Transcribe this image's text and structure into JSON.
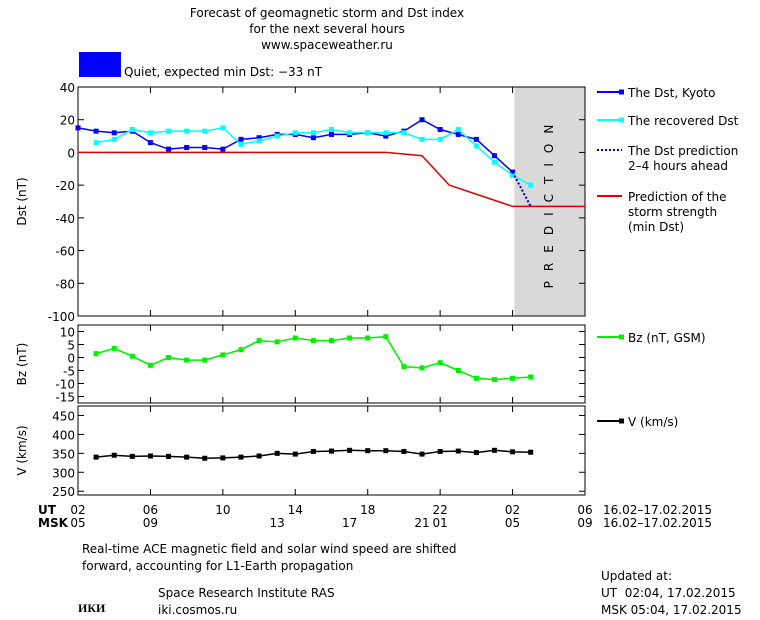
{
  "header": {
    "title_lines": [
      "Forecast of geomagnetic storm and Dst index",
      "for the next several hours",
      "www.spaceweather.ru"
    ],
    "status": "Quiet, expected min Dst: −33 nT",
    "status_color": "#0000ff"
  },
  "chart_data": [
    {
      "type": "line",
      "ylabel": "Dst (nT)",
      "xlim": [
        2,
        30
      ],
      "ylim": [
        -100,
        40
      ],
      "yticks": [
        40,
        20,
        0,
        -20,
        -40,
        -60,
        -80,
        -100
      ],
      "shaded_region": {
        "x": [
          26.1,
          30
        ],
        "label": "PREDICTION",
        "color": "#d9d9d9"
      },
      "series": [
        {
          "name": "The Dst, Kyoto",
          "color": "#0000ff",
          "style": "solid",
          "markers": true,
          "x": [
            2,
            3,
            4,
            5,
            6,
            7,
            8,
            9,
            10,
            11,
            12,
            13,
            14,
            15,
            16,
            17,
            18,
            19,
            20,
            21,
            22,
            23,
            24,
            25,
            26
          ],
          "values": [
            15,
            13,
            12,
            13,
            6,
            2,
            3,
            3,
            2,
            8,
            9,
            11,
            11,
            9,
            11,
            11,
            12,
            10,
            13,
            20,
            14,
            11,
            8,
            -2,
            -12
          ]
        },
        {
          "name": "The recovered Dst",
          "color": "#00ffff",
          "style": "solid",
          "markers": true,
          "x": [
            3,
            4,
            5,
            6,
            7,
            8,
            9,
            10,
            11,
            12,
            13,
            14,
            15,
            16,
            17,
            18,
            19,
            20,
            21,
            22,
            23,
            24,
            25,
            26,
            27
          ],
          "values": [
            6,
            8,
            14,
            12,
            13,
            13,
            13,
            15,
            5,
            7,
            10,
            12,
            12,
            14,
            12,
            12,
            12,
            12,
            8,
            8,
            14,
            4,
            -6,
            -14,
            -20
          ]
        },
        {
          "name": "The Dst prediction\n2–4 hours ahead",
          "color": "#0000aa",
          "style": "dotted",
          "markers": false,
          "x": [
            26,
            27
          ],
          "values": [
            -12,
            -33
          ]
        },
        {
          "name": "Prediction of the\nstorm strength\n(min Dst)",
          "color": "#dd0000",
          "style": "solid",
          "markers": false,
          "x": [
            2,
            19,
            21,
            22.5,
            26,
            30
          ],
          "values": [
            0,
            0,
            -2,
            -20,
            -33,
            -33
          ]
        }
      ]
    },
    {
      "type": "line",
      "ylabel": "Bz (nT)",
      "xlim": [
        2,
        30
      ],
      "ylim": [
        -17.5,
        12.5
      ],
      "yticks": [
        10,
        5,
        0,
        -5,
        -10,
        -15
      ],
      "series": [
        {
          "name": "Bz (nT, GSM)",
          "color": "#00ee00",
          "style": "solid",
          "markers": true,
          "x": [
            3,
            4,
            5,
            6,
            7,
            8,
            9,
            10,
            11,
            12,
            13,
            14,
            15,
            16,
            17,
            18,
            19,
            20,
            21,
            22,
            23,
            24,
            25,
            26,
            27
          ],
          "values": [
            1.5,
            3.5,
            0.5,
            -3,
            0,
            -1,
            -1,
            1,
            3,
            6.5,
            6,
            7.5,
            6.5,
            6.5,
            7.5,
            7.5,
            8,
            -3.5,
            -4,
            -2,
            -5,
            -8,
            -8.5,
            -8,
            -7.5
          ]
        }
      ]
    },
    {
      "type": "line",
      "ylabel": "V (km/s)",
      "xlim": [
        2,
        30
      ],
      "ylim": [
        240,
        475
      ],
      "yticks": [
        450,
        400,
        350,
        300,
        250
      ],
      "xticks": [
        {
          "value": 2,
          "label": "02"
        },
        {
          "value": 6,
          "label": "06"
        },
        10,
        14,
        18,
        22,
        {
          "value": 26,
          "label": "02"
        },
        {
          "value": 30,
          "label": "06"
        }
      ],
      "xticks_msk": [
        {
          "value": 2,
          "label": "05"
        },
        {
          "value": 6,
          "label": "09"
        },
        13,
        17,
        21,
        {
          "value": 22,
          "label": "01"
        },
        {
          "value": 26,
          "label": "05"
        },
        {
          "value": 30,
          "label": "09"
        }
      ],
      "x_row_labels": [
        "UT",
        "MSK"
      ],
      "date_range": [
        "16.02–17.02.2015",
        "16.02–17.02.2015"
      ],
      "series": [
        {
          "name": "V (km/s)",
          "color": "#000000",
          "style": "solid",
          "markers": true,
          "x": [
            3,
            4,
            5,
            6,
            7,
            8,
            9,
            10,
            11,
            12,
            13,
            14,
            15,
            16,
            17,
            18,
            19,
            20,
            21,
            22,
            23,
            24,
            25,
            26,
            27
          ],
          "values": [
            340,
            345,
            342,
            343,
            342,
            340,
            337,
            338,
            340,
            343,
            350,
            348,
            355,
            356,
            358,
            357,
            357,
            355,
            348,
            355,
            356,
            352,
            358,
            354,
            353
          ]
        }
      ]
    }
  ],
  "footer": {
    "note_lines": [
      "Real-time ACE magnetic field and solar wind speed are shifted",
      "forward, accounting for L1-Earth propagation"
    ],
    "logo": "ИКИ",
    "institute": "Space Research Institute RAS",
    "site": "iki.cosmos.ru",
    "updated": [
      "Updated at:",
      "UT  02:04, 17.02.2015",
      "MSK 05:04, 17.02.2015"
    ]
  }
}
